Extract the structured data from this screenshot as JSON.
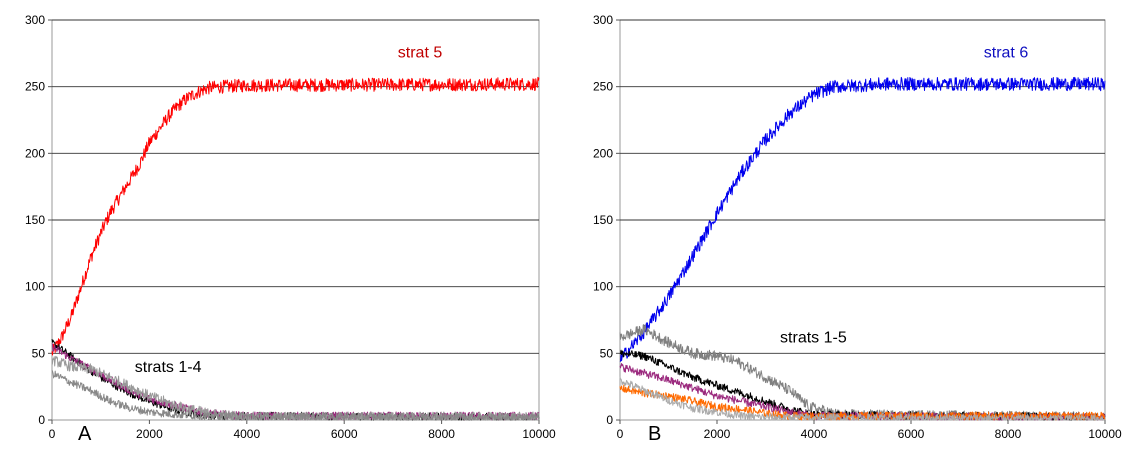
{
  "chart_data": [
    {
      "type": "line",
      "panel_label": "A",
      "xlim": [
        0,
        10000
      ],
      "ylim": [
        0,
        300
      ],
      "x_ticks": [
        "0",
        "2000",
        "4000",
        "6000",
        "8000",
        "10000"
      ],
      "y_ticks": [
        "0",
        "50",
        "100",
        "150",
        "200",
        "250",
        "300"
      ],
      "grid": true,
      "annotations": [
        {
          "text": "strat 5",
          "x": 7100,
          "y": 272,
          "color": "#c00000"
        },
        {
          "text": "strats 1-4",
          "x": 1700,
          "y": 36,
          "color": "#000000"
        }
      ],
      "series": [
        {
          "color": "#ff0000",
          "noise": 5,
          "points": [
            [
              0,
              50
            ],
            [
              200,
              62
            ],
            [
              400,
              78
            ],
            [
              600,
              100
            ],
            [
              800,
              122
            ],
            [
              1000,
              140
            ],
            [
              1200,
              156
            ],
            [
              1400,
              168
            ],
            [
              1600,
              180
            ],
            [
              1800,
              192
            ],
            [
              2000,
              208
            ],
            [
              2200,
              218
            ],
            [
              2400,
              228
            ],
            [
              2600,
              236
            ],
            [
              2800,
              242
            ],
            [
              3000,
              246
            ],
            [
              3200,
              249
            ],
            [
              3500,
              250
            ],
            [
              4000,
              251
            ],
            [
              10000,
              252
            ]
          ]
        },
        {
          "color": "#000000",
          "noise": 3,
          "points": [
            [
              0,
              58
            ],
            [
              300,
              50
            ],
            [
              600,
              42
            ],
            [
              1000,
              32
            ],
            [
              1500,
              22
            ],
            [
              2000,
              14
            ],
            [
              2500,
              8
            ],
            [
              3000,
              4
            ],
            [
              3500,
              3
            ],
            [
              10000,
              2
            ]
          ]
        },
        {
          "color": "#9b2a7e",
          "noise": 3,
          "points": [
            [
              0,
              55
            ],
            [
              400,
              46
            ],
            [
              800,
              38
            ],
            [
              1200,
              30
            ],
            [
              1600,
              22
            ],
            [
              2000,
              16
            ],
            [
              2600,
              10
            ],
            [
              3200,
              5
            ],
            [
              4000,
              3
            ],
            [
              10000,
              3
            ]
          ]
        },
        {
          "color": "#999999",
          "noise": 4,
          "points": [
            [
              0,
              45
            ],
            [
              400,
              40
            ],
            [
              800,
              38
            ],
            [
              1200,
              32
            ],
            [
              1600,
              25
            ],
            [
              2000,
              18
            ],
            [
              2600,
              10
            ],
            [
              3200,
              5
            ],
            [
              4000,
              2
            ],
            [
              10000,
              2
            ]
          ]
        },
        {
          "color": "#888888",
          "noise": 3,
          "points": [
            [
              0,
              35
            ],
            [
              400,
              28
            ],
            [
              800,
              22
            ],
            [
              1200,
              14
            ],
            [
              1600,
              9
            ],
            [
              2000,
              6
            ],
            [
              2600,
              4
            ],
            [
              3200,
              3
            ],
            [
              10000,
              2
            ]
          ]
        }
      ]
    },
    {
      "type": "line",
      "panel_label": "B",
      "xlim": [
        0,
        10000
      ],
      "ylim": [
        0,
        300
      ],
      "x_ticks": [
        "0",
        "2000",
        "4000",
        "6000",
        "8000",
        "10000"
      ],
      "y_ticks": [
        "0",
        "50",
        "100",
        "150",
        "200",
        "250",
        "300"
      ],
      "grid": true,
      "annotations": [
        {
          "text": "strat 6",
          "x": 7500,
          "y": 272,
          "color": "#1010c0"
        },
        {
          "text": "strats 1-5",
          "x": 3300,
          "y": 58,
          "color": "#000000"
        }
      ],
      "series": [
        {
          "color": "#0000ee",
          "noise": 5,
          "points": [
            [
              0,
              45
            ],
            [
              500,
              66
            ],
            [
              1000,
              92
            ],
            [
              1500,
              123
            ],
            [
              2000,
              155
            ],
            [
              2500,
              185
            ],
            [
              3000,
              210
            ],
            [
              3500,
              230
            ],
            [
              4000,
              244
            ],
            [
              4400,
              250
            ],
            [
              5000,
              251
            ],
            [
              5500,
              252
            ],
            [
              10000,
              252
            ]
          ]
        },
        {
          "color": "#808080",
          "noise": 4,
          "points": [
            [
              0,
              62
            ],
            [
              500,
              68
            ],
            [
              1000,
              58
            ],
            [
              1500,
              50
            ],
            [
              2000,
              48
            ],
            [
              2400,
              44
            ],
            [
              3000,
              32
            ],
            [
              3500,
              22
            ],
            [
              3900,
              10
            ],
            [
              4500,
              4
            ],
            [
              10000,
              2
            ]
          ]
        },
        {
          "color": "#000000",
          "noise": 3,
          "points": [
            [
              0,
              50
            ],
            [
              500,
              48
            ],
            [
              1000,
              40
            ],
            [
              1500,
              32
            ],
            [
              2000,
              26
            ],
            [
              2500,
              20
            ],
            [
              3000,
              14
            ],
            [
              3500,
              8
            ],
            [
              4000,
              4
            ],
            [
              10000,
              2
            ]
          ]
        },
        {
          "color": "#9b2a7e",
          "noise": 3,
          "points": [
            [
              0,
              40
            ],
            [
              500,
              35
            ],
            [
              1000,
              30
            ],
            [
              1500,
              24
            ],
            [
              2000,
              18
            ],
            [
              2500,
              14
            ],
            [
              3000,
              10
            ],
            [
              3500,
              6
            ],
            [
              4000,
              3
            ],
            [
              10000,
              2
            ]
          ]
        },
        {
          "color": "#ff6a00",
          "noise": 3,
          "points": [
            [
              0,
              24
            ],
            [
              500,
              20
            ],
            [
              1000,
              18
            ],
            [
              1500,
              14
            ],
            [
              2000,
              10
            ],
            [
              2500,
              8
            ],
            [
              3000,
              5
            ],
            [
              3500,
              3
            ],
            [
              10000,
              3
            ]
          ]
        },
        {
          "color": "#aaaaaa",
          "noise": 3,
          "points": [
            [
              0,
              30
            ],
            [
              500,
              22
            ],
            [
              1000,
              15
            ],
            [
              1500,
              9
            ],
            [
              2000,
              6
            ],
            [
              2500,
              3
            ],
            [
              3000,
              2
            ],
            [
              10000,
              1
            ]
          ]
        }
      ]
    }
  ]
}
